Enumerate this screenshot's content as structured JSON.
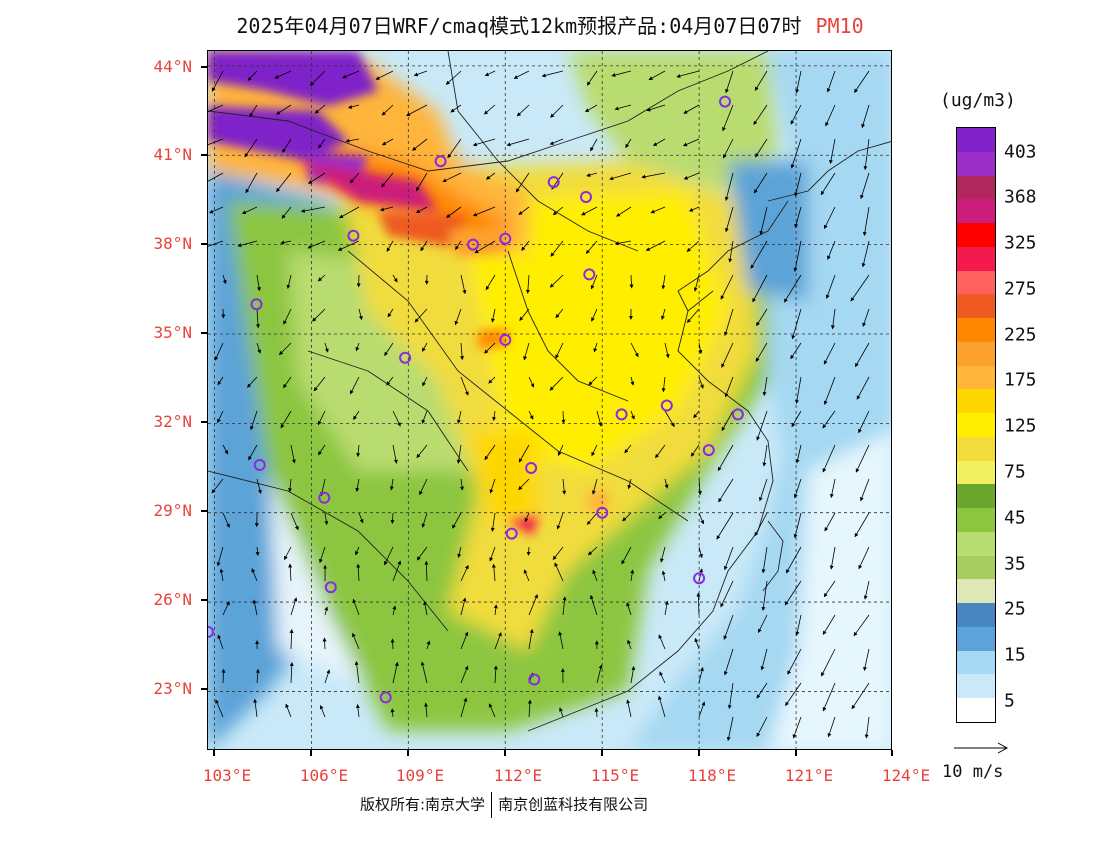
{
  "title": {
    "main": "2025年04月07日WRF/cmaq模式12km预报产品:04月07日07时",
    "species": "PM10"
  },
  "map": {
    "lat_labels": [
      "44°N",
      "41°N",
      "38°N",
      "35°N",
      "32°N",
      "29°N",
      "26°N",
      "23°N"
    ],
    "lon_labels": [
      "103°E",
      "106°E",
      "109°E",
      "112°E",
      "115°E",
      "118°E",
      "121°E",
      "124°E"
    ],
    "lat_range": [
      21.0,
      44.5
    ],
    "lon_range": [
      102.8,
      124.0
    ]
  },
  "legend": {
    "unit": "(ug/m3)",
    "labels": [
      "403",
      "368",
      "325",
      "275",
      "225",
      "175",
      "125",
      "75",
      "45",
      "35",
      "25",
      "15",
      "5"
    ],
    "colors": [
      "#7f22c9",
      "#9a2ec6",
      "#b0285e",
      "#cc1c7c",
      "#ff0000",
      "#f51a4e",
      "#ff6060",
      "#ee5a22",
      "#ff8800",
      "#fba12d",
      "#ffb43a",
      "#ffd700",
      "#ffee00",
      "#f1dc3c",
      "#f1f060",
      "#6aa52d",
      "#8cc63f",
      "#b9dc70",
      "#a8cc60",
      "#dde8b5",
      "#4887c1",
      "#5ba3d8",
      "#a5d8f2",
      "#c9e9f8",
      "#ffffff"
    ]
  },
  "vector_reference": {
    "label": "10 m/s"
  },
  "stations_lonlat": [
    [
      118.8,
      42.8
    ],
    [
      110.0,
      40.8
    ],
    [
      113.5,
      40.1
    ],
    [
      114.5,
      39.6
    ],
    [
      107.3,
      38.3
    ],
    [
      111.0,
      38.0
    ],
    [
      112.0,
      38.2
    ],
    [
      114.6,
      37.0
    ],
    [
      104.3,
      36.0
    ],
    [
      112.0,
      34.8
    ],
    [
      108.9,
      34.2
    ],
    [
      117.0,
      32.6
    ],
    [
      115.6,
      32.3
    ],
    [
      119.2,
      32.3
    ],
    [
      118.3,
      31.1
    ],
    [
      104.4,
      30.6
    ],
    [
      112.8,
      30.5
    ],
    [
      106.4,
      29.5
    ],
    [
      115.0,
      29.0
    ],
    [
      112.2,
      28.3
    ],
    [
      118.0,
      26.8
    ],
    [
      106.6,
      26.5
    ],
    [
      102.8,
      25.0
    ],
    [
      108.3,
      22.8
    ],
    [
      112.9,
      23.4
    ]
  ],
  "copyright": {
    "left": "版权所有:南京大学",
    "right": "南京创蓝科技有限公司"
  }
}
